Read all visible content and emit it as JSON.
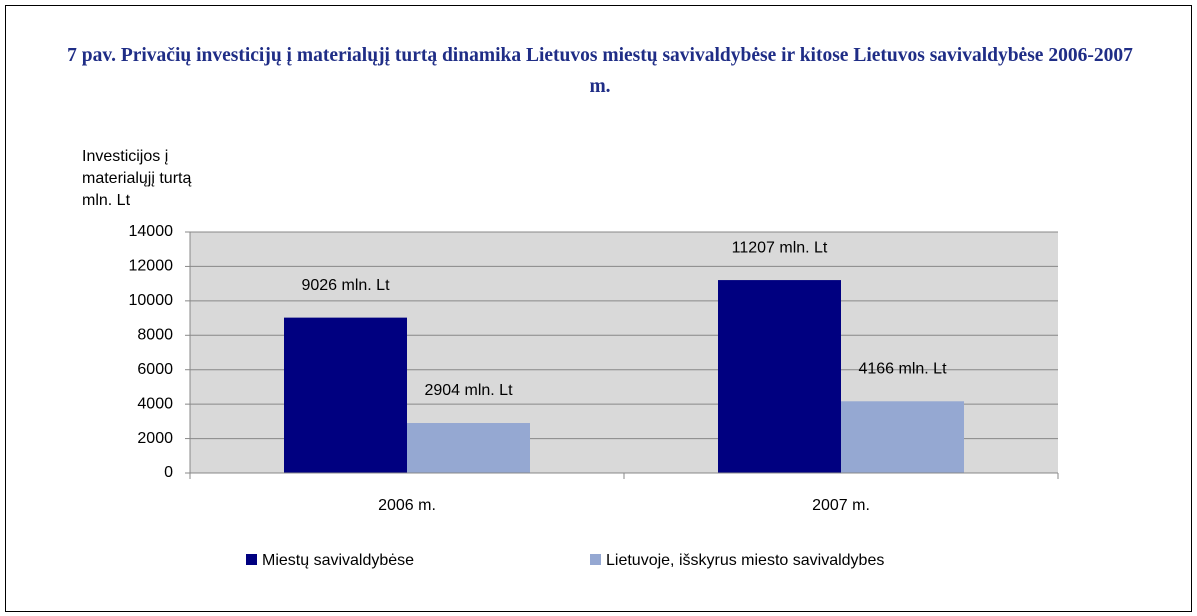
{
  "chart_data": {
    "type": "bar",
    "title": "7 pav. Privačių investicijų į materialųjį turtą dinamika Lietuvos miestų savivaldybėse ir kitose Lietuvos savivaldybėse 2006-2007 m.",
    "y_label": [
      "Investicijos į",
      "materialųjį turtą",
      "mln. Lt"
    ],
    "categories": [
      "2006 m.",
      "2007 m."
    ],
    "series": [
      {
        "name": "Miestų savivaldybėse",
        "color": "#000080",
        "values": [
          9026,
          11207
        ],
        "value_labels": [
          "9026 mln. Lt",
          "11207 mln. Lt"
        ]
      },
      {
        "name": "Lietuvoje, išskyrus miesto savivaldybes",
        "color": "#95a8d2",
        "values": [
          2904,
          4166
        ],
        "value_labels": [
          "2904 mln. Lt",
          "4166 mln. Lt"
        ]
      }
    ],
    "ylim": [
      0,
      14000
    ],
    "yticks": [
      0,
      2000,
      4000,
      6000,
      8000,
      10000,
      12000,
      14000
    ],
    "grid": true,
    "legend": "bottom"
  }
}
